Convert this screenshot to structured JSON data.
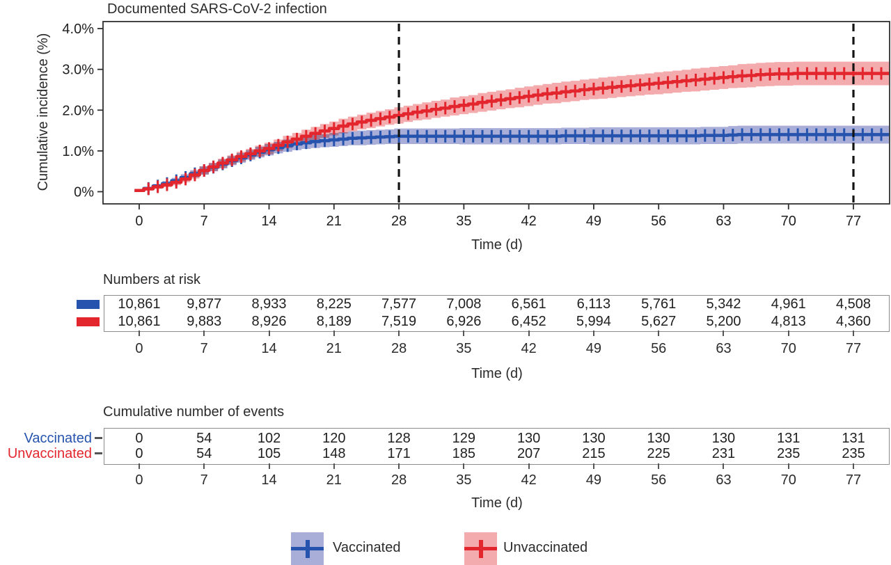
{
  "chart_data": {
    "type": "line",
    "title": "Documented SARS-CoV-2 infection",
    "xlabel": "Time (d)",
    "ylabel": "Cumulative incidence (%)",
    "x_ticks": [
      0,
      7,
      14,
      21,
      28,
      35,
      42,
      49,
      56,
      63,
      70,
      77
    ],
    "y_ticks": [
      {
        "value": 0,
        "label": "0%"
      },
      {
        "value": 1,
        "label": "1.0%"
      },
      {
        "value": 2,
        "label": "2.0%"
      },
      {
        "value": 3,
        "label": "3.0%"
      },
      {
        "value": 4,
        "label": "4.0%"
      }
    ],
    "xlim": [
      -3.9,
      80.9
    ],
    "ylim": [
      0,
      4
    ],
    "grid": false,
    "dashed_vlines_days": [
      28,
      77
    ],
    "censor_tick_interval_days": 1,
    "legend_position": "bottom",
    "series": [
      {
        "name": "Vaccinated",
        "color": "#2553ad",
        "band_color": "#a9aed9",
        "x_days": [
          0,
          1,
          2,
          3,
          4,
          5,
          6,
          7,
          8,
          9,
          10,
          11,
          12,
          13,
          14,
          15,
          16,
          17,
          18,
          19,
          20,
          21,
          22,
          23,
          24,
          25,
          26,
          27,
          28,
          29,
          30,
          31,
          32,
          33,
          34,
          35,
          36,
          37,
          38,
          39,
          40,
          41,
          42,
          43,
          44,
          45,
          46,
          47,
          48,
          49,
          50,
          51,
          52,
          53,
          54,
          55,
          56,
          57,
          58,
          59,
          60,
          61,
          62,
          63,
          64,
          65,
          66,
          67,
          68,
          69,
          70,
          71,
          72,
          73,
          74,
          75,
          76,
          77,
          78,
          79,
          80,
          81
        ],
        "y_pct": [
          0.03,
          0.08,
          0.14,
          0.2,
          0.27,
          0.35,
          0.44,
          0.52,
          0.6,
          0.68,
          0.76,
          0.83,
          0.9,
          0.97,
          1.03,
          1.08,
          1.13,
          1.17,
          1.2,
          1.23,
          1.25,
          1.27,
          1.29,
          1.31,
          1.32,
          1.33,
          1.34,
          1.35,
          1.36,
          1.36,
          1.36,
          1.36,
          1.36,
          1.36,
          1.36,
          1.36,
          1.36,
          1.36,
          1.36,
          1.36,
          1.36,
          1.36,
          1.36,
          1.36,
          1.36,
          1.36,
          1.37,
          1.37,
          1.37,
          1.37,
          1.37,
          1.37,
          1.37,
          1.37,
          1.37,
          1.37,
          1.37,
          1.37,
          1.37,
          1.37,
          1.37,
          1.38,
          1.38,
          1.38,
          1.39,
          1.4,
          1.4,
          1.4,
          1.4,
          1.4,
          1.4,
          1.4,
          1.4,
          1.4,
          1.4,
          1.4,
          1.4,
          1.4,
          1.4,
          1.4,
          1.4,
          1.4
        ],
        "ci_halfwidth_pct": [
          0.02,
          0.04,
          0.05,
          0.06,
          0.07,
          0.08,
          0.09,
          0.1,
          0.1,
          0.11,
          0.11,
          0.12,
          0.12,
          0.13,
          0.14,
          0.14,
          0.15,
          0.15,
          0.15,
          0.16,
          0.16,
          0.17,
          0.17,
          0.17,
          0.18,
          0.18,
          0.18,
          0.18,
          0.19,
          0.19,
          0.19,
          0.19,
          0.19,
          0.19,
          0.19,
          0.2,
          0.2,
          0.2,
          0.2,
          0.2,
          0.2,
          0.2,
          0.2,
          0.2,
          0.2,
          0.2,
          0.2,
          0.2,
          0.2,
          0.21,
          0.21,
          0.21,
          0.21,
          0.21,
          0.21,
          0.21,
          0.21,
          0.21,
          0.21,
          0.21,
          0.21,
          0.21,
          0.21,
          0.21,
          0.22,
          0.22,
          0.22,
          0.22,
          0.22,
          0.22,
          0.22,
          0.22,
          0.22,
          0.22,
          0.22,
          0.22,
          0.22,
          0.22,
          0.22,
          0.22,
          0.22,
          0.22
        ]
      },
      {
        "name": "Unvaccinated",
        "color": "#e3262e",
        "band_color": "#f4abad",
        "x_days": [
          0,
          1,
          2,
          3,
          4,
          5,
          6,
          7,
          8,
          9,
          10,
          11,
          12,
          13,
          14,
          15,
          16,
          17,
          18,
          19,
          20,
          21,
          22,
          23,
          24,
          25,
          26,
          27,
          28,
          29,
          30,
          31,
          32,
          33,
          34,
          35,
          36,
          37,
          38,
          39,
          40,
          41,
          42,
          43,
          44,
          45,
          46,
          47,
          48,
          49,
          50,
          51,
          52,
          53,
          54,
          55,
          56,
          57,
          58,
          59,
          60,
          61,
          62,
          63,
          64,
          65,
          66,
          67,
          68,
          69,
          70,
          71,
          72,
          73,
          74,
          75,
          76,
          77,
          78,
          79,
          80,
          81
        ],
        "y_pct": [
          0.03,
          0.07,
          0.12,
          0.17,
          0.23,
          0.31,
          0.41,
          0.52,
          0.61,
          0.7,
          0.78,
          0.86,
          0.93,
          1.0,
          1.06,
          1.14,
          1.22,
          1.29,
          1.36,
          1.43,
          1.49,
          1.55,
          1.61,
          1.66,
          1.71,
          1.75,
          1.79,
          1.83,
          1.87,
          1.91,
          1.95,
          1.98,
          2.02,
          2.05,
          2.09,
          2.12,
          2.15,
          2.19,
          2.22,
          2.25,
          2.28,
          2.31,
          2.34,
          2.37,
          2.4,
          2.42,
          2.45,
          2.47,
          2.5,
          2.52,
          2.54,
          2.56,
          2.58,
          2.6,
          2.62,
          2.64,
          2.66,
          2.68,
          2.7,
          2.72,
          2.74,
          2.76,
          2.78,
          2.8,
          2.82,
          2.84,
          2.85,
          2.87,
          2.88,
          2.89,
          2.89,
          2.9,
          2.9,
          2.9,
          2.9,
          2.9,
          2.9,
          2.9,
          2.9,
          2.9,
          2.9,
          2.9
        ],
        "ci_halfwidth_pct": [
          0.02,
          0.04,
          0.05,
          0.06,
          0.07,
          0.08,
          0.09,
          0.1,
          0.1,
          0.11,
          0.11,
          0.12,
          0.12,
          0.13,
          0.14,
          0.14,
          0.15,
          0.15,
          0.16,
          0.16,
          0.17,
          0.17,
          0.18,
          0.18,
          0.18,
          0.19,
          0.19,
          0.19,
          0.2,
          0.2,
          0.2,
          0.21,
          0.21,
          0.21,
          0.22,
          0.22,
          0.22,
          0.23,
          0.23,
          0.23,
          0.23,
          0.24,
          0.24,
          0.24,
          0.24,
          0.25,
          0.25,
          0.25,
          0.25,
          0.25,
          0.26,
          0.26,
          0.26,
          0.26,
          0.26,
          0.26,
          0.27,
          0.27,
          0.27,
          0.27,
          0.28,
          0.28,
          0.28,
          0.28,
          0.28,
          0.29,
          0.29,
          0.29,
          0.29,
          0.29,
          0.29,
          0.29,
          0.29,
          0.29,
          0.29,
          0.29,
          0.29,
          0.29,
          0.29,
          0.29,
          0.29,
          0.29
        ]
      }
    ]
  },
  "risk_table": {
    "title": "Numbers at risk",
    "xlabel": "Time (d)",
    "columns": [
      0,
      7,
      14,
      21,
      28,
      35,
      42,
      49,
      56,
      63,
      70,
      77
    ],
    "rows": [
      {
        "name": "Vaccinated",
        "swatch_color": "#2553ad",
        "values": [
          "10,861",
          "9,877",
          "8,933",
          "8,225",
          "7,577",
          "7,008",
          "6,561",
          "6,113",
          "5,761",
          "5,342",
          "4,961",
          "4,508"
        ]
      },
      {
        "name": "Unvaccinated",
        "swatch_color": "#e3262e",
        "values": [
          "10,861",
          "9,883",
          "8,926",
          "8,189",
          "7,519",
          "6,926",
          "6,452",
          "5,994",
          "5,627",
          "5,200",
          "4,813",
          "4,360"
        ]
      }
    ]
  },
  "events_table": {
    "title": "Cumulative number of events",
    "xlabel": "Time (d)",
    "columns": [
      0,
      7,
      14,
      21,
      28,
      35,
      42,
      49,
      56,
      63,
      70,
      77
    ],
    "rows": [
      {
        "label": "Vaccinated",
        "label_color": "#2553ad",
        "values": [
          "0",
          "54",
          "102",
          "120",
          "128",
          "129",
          "130",
          "130",
          "130",
          "130",
          "131",
          "131"
        ]
      },
      {
        "label": "Unvaccinated",
        "label_color": "#e3262e",
        "values": [
          "0",
          "54",
          "105",
          "148",
          "171",
          "185",
          "207",
          "215",
          "225",
          "231",
          "235",
          "235"
        ]
      }
    ]
  },
  "legend": {
    "items": [
      {
        "label": "Vaccinated",
        "line_color": "#2553ad",
        "band_color": "#a9aed9"
      },
      {
        "label": "Unvaccinated",
        "line_color": "#e3262e",
        "band_color": "#f4abad"
      }
    ]
  }
}
